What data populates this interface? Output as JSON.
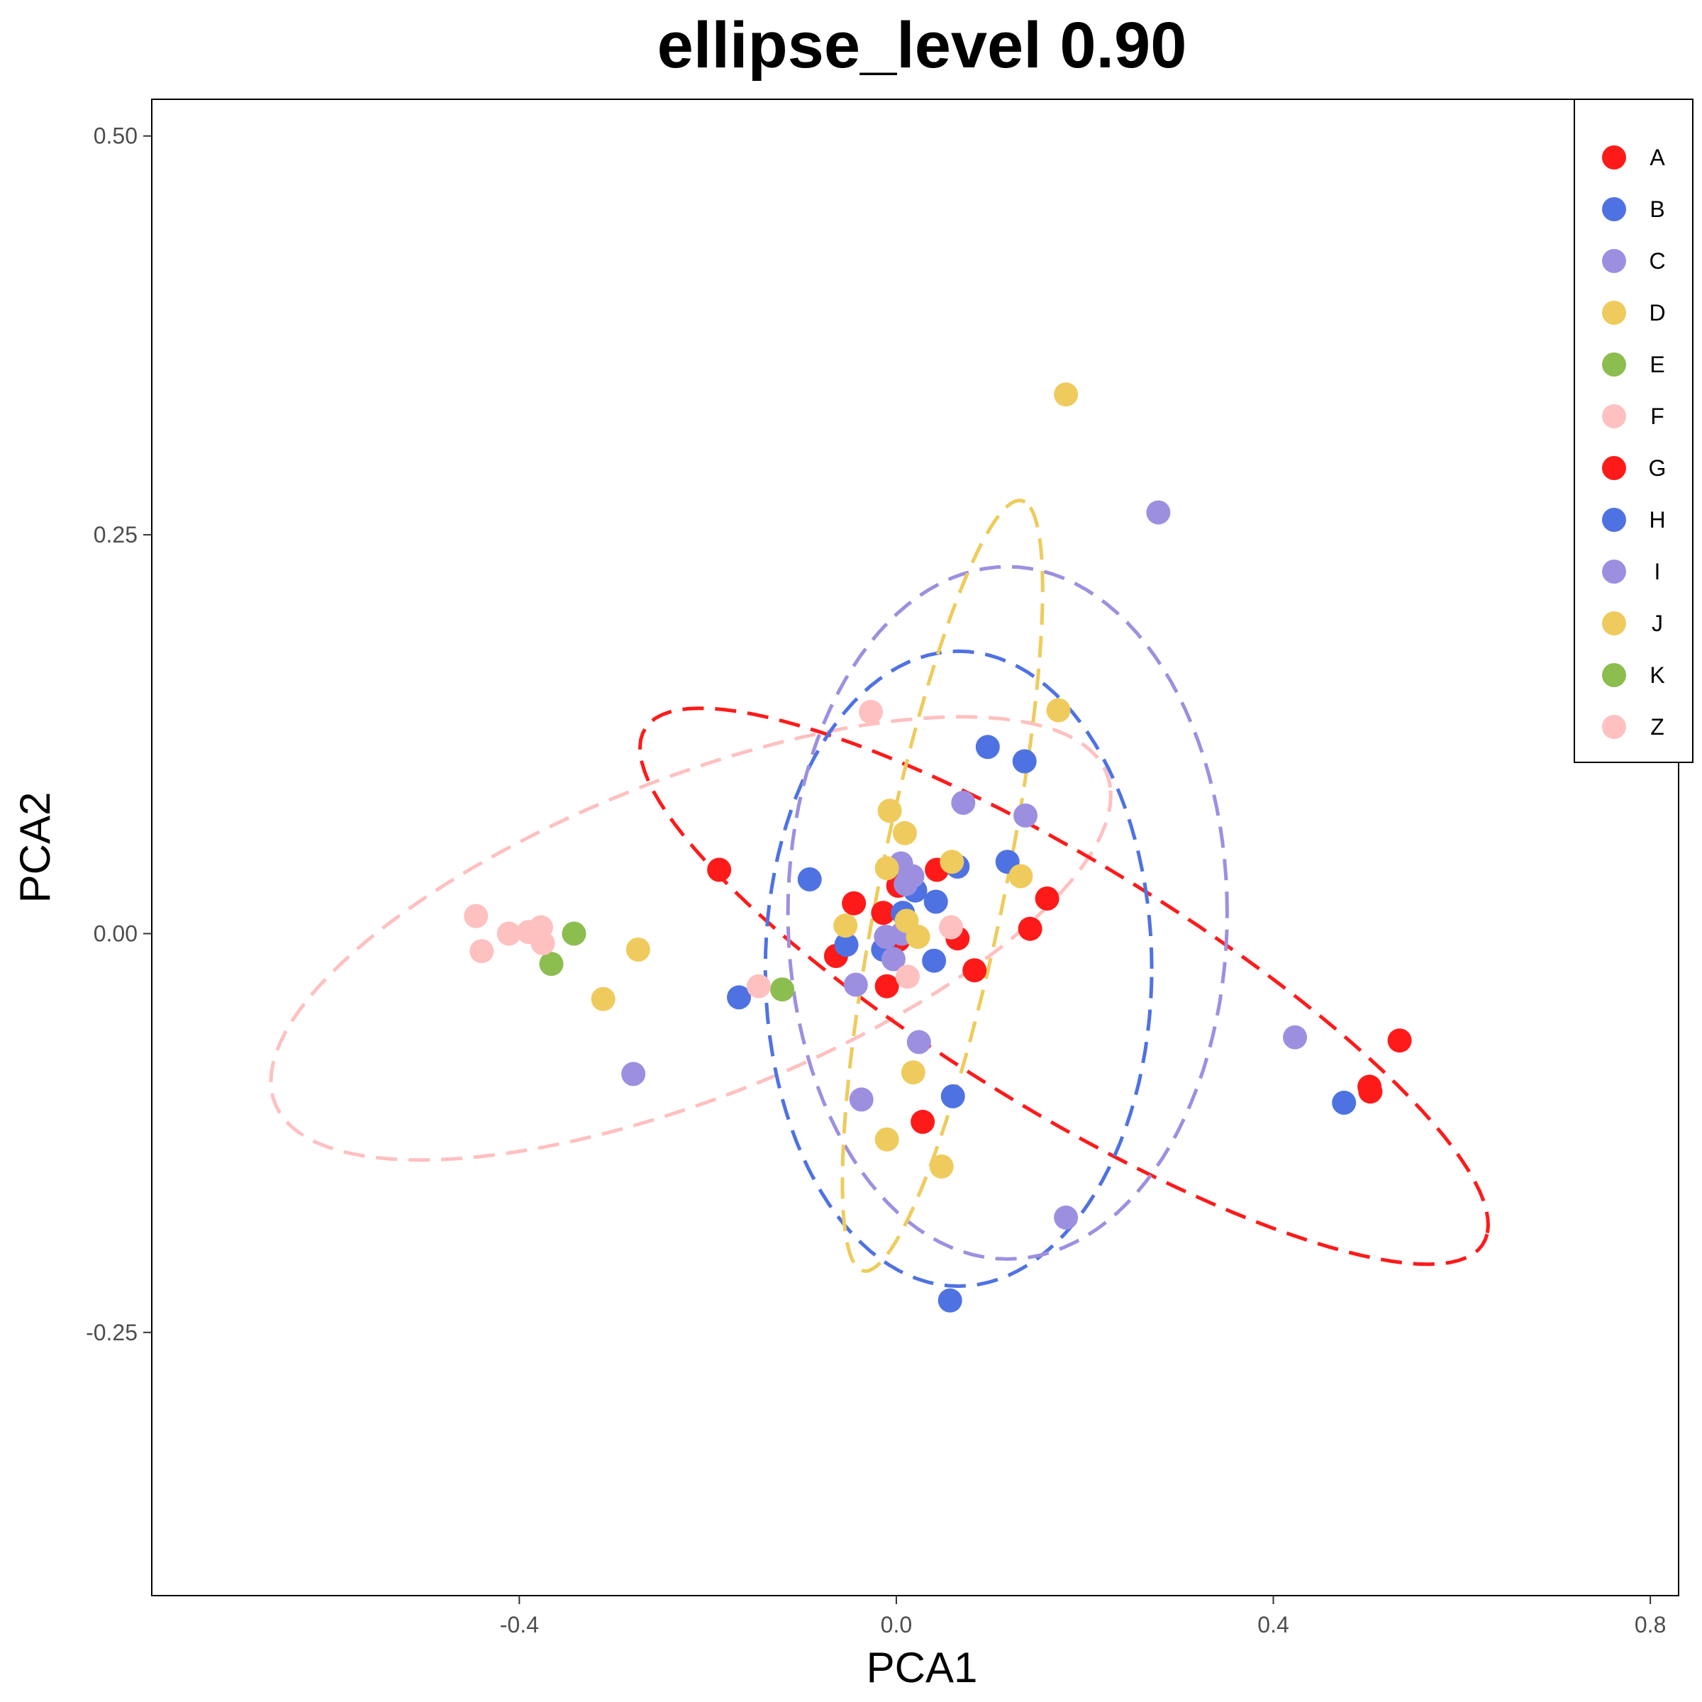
{
  "chart_data": {
    "type": "scatter",
    "title": "ellipse_level 0.90",
    "xlabel": "PCA1",
    "ylabel": "PCA2",
    "xlim": [
      -0.79,
      0.83
    ],
    "ylim": [
      -0.415,
      0.523
    ],
    "x_ticks": [
      -0.4,
      0.0,
      0.4,
      0.8
    ],
    "x_tick_labels": [
      "-0.4",
      "0.0",
      "0.4",
      "0.8"
    ],
    "y_ticks": [
      -0.25,
      0.0,
      0.25,
      0.5
    ],
    "y_tick_labels": [
      "-0.25",
      "0.00",
      "0.25",
      "0.50"
    ],
    "grid": false,
    "legend_position": "top-right",
    "ellipse_level": 0.9,
    "series": [
      {
        "name": "A",
        "color": "#FF1A1A",
        "points": [
          [
            -0.188,
            0.04
          ],
          [
            0.002,
            0.03
          ],
          [
            0.043,
            0.04
          ],
          [
            -0.045,
            0.019
          ],
          [
            -0.014,
            0.013
          ],
          [
            0.002,
            -0.004
          ],
          [
            0.065,
            -0.003
          ],
          [
            -0.064,
            -0.014
          ],
          [
            -0.01,
            -0.033
          ],
          [
            0.083,
            -0.023
          ],
          [
            0.16,
            0.022
          ],
          [
            0.142,
            0.003
          ],
          [
            0.534,
            -0.067
          ],
          [
            0.502,
            -0.096
          ],
          [
            0.503,
            -0.099
          ],
          [
            0.028,
            -0.118
          ]
        ]
      },
      {
        "name": "B",
        "color": "#4F72E3",
        "points": [
          [
            0.097,
            0.117
          ],
          [
            0.136,
            0.108
          ],
          [
            0.118,
            0.045
          ],
          [
            0.065,
            0.042
          ],
          [
            -0.092,
            0.034
          ],
          [
            0.02,
            0.027
          ],
          [
            0.042,
            0.02
          ],
          [
            0.007,
            0.013
          ],
          [
            -0.053,
            -0.007
          ],
          [
            -0.014,
            -0.01
          ],
          [
            0.04,
            -0.017
          ],
          [
            -0.167,
            -0.04
          ],
          [
            0.06,
            -0.102
          ],
          [
            0.475,
            -0.106
          ],
          [
            0.057,
            -0.23
          ]
        ]
      },
      {
        "name": "C",
        "color": "#9D8FE0",
        "points": [
          [
            0.278,
            0.264
          ],
          [
            0.137,
            0.074
          ],
          [
            0.071,
            0.082
          ],
          [
            0.005,
            0.044
          ],
          [
            0.017,
            0.036
          ],
          [
            0.01,
            0.031
          ],
          [
            -0.011,
            -0.002
          ],
          [
            0.006,
            0.0
          ],
          [
            -0.003,
            -0.016
          ],
          [
            -0.043,
            -0.032
          ],
          [
            0.024,
            -0.068
          ],
          [
            0.423,
            -0.065
          ],
          [
            -0.279,
            -0.088
          ],
          [
            -0.037,
            -0.104
          ],
          [
            0.18,
            -0.178
          ]
        ]
      },
      {
        "name": "D",
        "color": "#EECB5C",
        "points": [
          [
            0.18,
            0.338
          ],
          [
            0.172,
            0.14
          ],
          [
            -0.007,
            0.077
          ],
          [
            0.009,
            0.063
          ],
          [
            0.059,
            0.045
          ],
          [
            -0.01,
            0.041
          ],
          [
            0.132,
            0.036
          ],
          [
            -0.054,
            0.005
          ],
          [
            0.011,
            0.008
          ],
          [
            0.023,
            -0.002
          ],
          [
            -0.274,
            -0.01
          ],
          [
            -0.311,
            -0.041
          ],
          [
            0.018,
            -0.087
          ],
          [
            -0.01,
            -0.129
          ],
          [
            0.048,
            -0.146
          ]
        ]
      },
      {
        "name": "E",
        "color": "#8CBD4F",
        "points": [
          [
            -0.342,
            0.0
          ],
          [
            -0.366,
            -0.019
          ],
          [
            -0.121,
            -0.035
          ]
        ]
      },
      {
        "name": "F",
        "color": "#FFC0C0",
        "points": [
          [
            -0.446,
            0.011
          ],
          [
            -0.411,
            0.0
          ],
          [
            -0.39,
            0.001
          ],
          [
            -0.377,
            0.004
          ],
          [
            -0.375,
            -0.006
          ],
          [
            -0.44,
            -0.011
          ],
          [
            -0.146,
            -0.033
          ],
          [
            -0.027,
            0.139
          ],
          [
            0.012,
            -0.027
          ],
          [
            0.058,
            0.004
          ]
        ]
      },
      {
        "name": "G",
        "color": "#FF1A1A",
        "points": []
      },
      {
        "name": "H",
        "color": "#4F72E3",
        "points": []
      },
      {
        "name": "I",
        "color": "#9D8FE0",
        "points": []
      },
      {
        "name": "J",
        "color": "#EECB5C",
        "points": []
      },
      {
        "name": "K",
        "color": "#8CBD4F",
        "points": []
      },
      {
        "name": "Z",
        "color": "#FFC0C0",
        "points": []
      }
    ],
    "ellipses": [
      {
        "series": "F",
        "color": "#FFC0C0",
        "center": [
          -0.218,
          -0.003
        ],
        "rx": 0.455,
        "ry": 0.104,
        "angle_deg": 12
      },
      {
        "series": "A",
        "color": "#FF1A1A",
        "center": [
          0.178,
          -0.033
        ],
        "rx": 0.475,
        "ry": 0.085,
        "angle_deg": -19
      },
      {
        "series": "B",
        "color": "#4F72E3",
        "center": [
          0.066,
          -0.022
        ],
        "rx": 0.205,
        "ry": 0.199,
        "angle_deg": 0
      },
      {
        "series": "C",
        "color": "#9D8FE0",
        "center": [
          0.118,
          0.013
        ],
        "rx": 0.233,
        "ry": 0.217,
        "angle_deg": 0
      },
      {
        "series": "D",
        "color": "#EECB5C",
        "center": [
          0.049,
          0.03
        ],
        "rx": 0.256,
        "ry": 0.064,
        "angle_deg": 70
      }
    ]
  }
}
